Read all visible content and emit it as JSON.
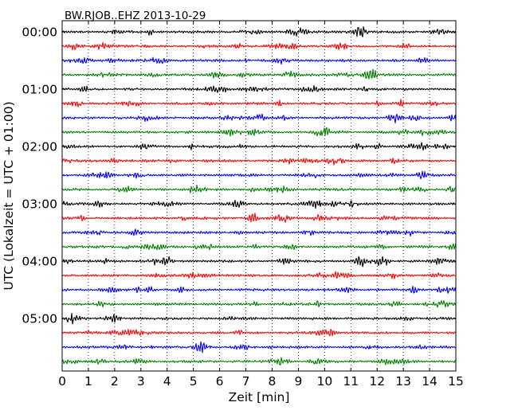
{
  "chart_data": {
    "type": "line",
    "title": "BW.RJOB..EHZ 2013-10-29",
    "xlabel": "Zeit  [min]",
    "ylabel": "UTC (Lokalzeit = UTC + 01:00)",
    "xlim": [
      0,
      15
    ],
    "x_ticks": [
      "0",
      "1",
      "2",
      "3",
      "4",
      "5",
      "6",
      "7",
      "8",
      "9",
      "10",
      "11",
      "12",
      "13",
      "14",
      "15"
    ],
    "y_tick_labels": [
      "00:00",
      "01:00",
      "02:00",
      "03:00",
      "04:00",
      "05:00"
    ],
    "y_tick_trace_index": [
      0,
      4,
      8,
      12,
      16,
      20
    ],
    "trace_count": 24,
    "trace_interval_min": 15,
    "trace_colors": [
      "#000000",
      "#ff0000",
      "#0000ff",
      "#008000"
    ],
    "grid": "vertical dotted",
    "legend": "none"
  }
}
